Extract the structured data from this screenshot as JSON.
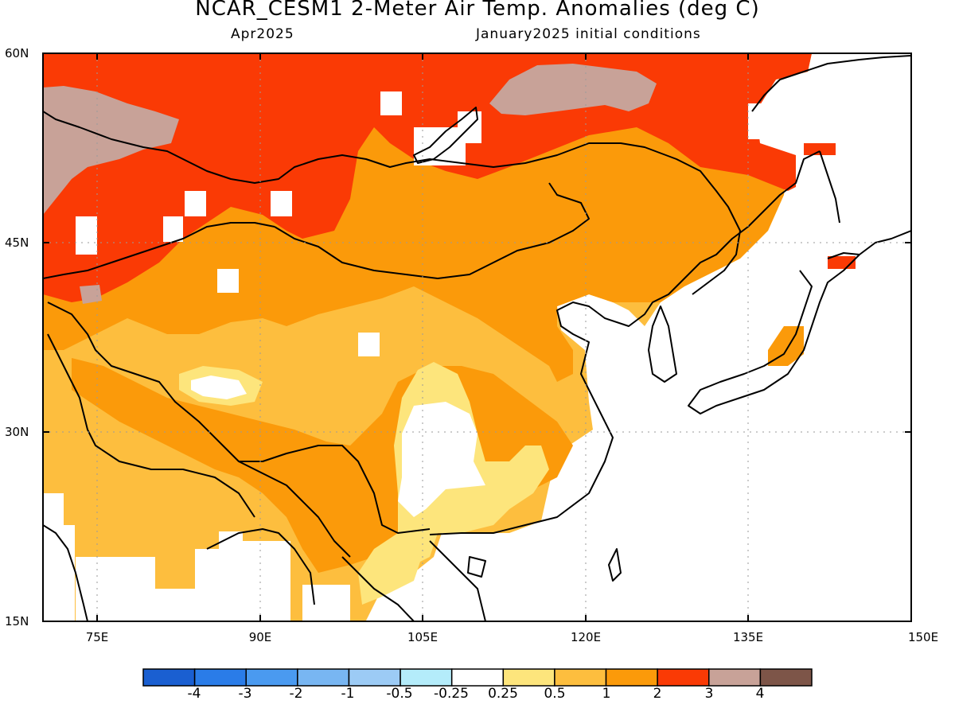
{
  "header": {
    "title": "NCAR_CESM1 2-Meter Air Temp. Anomalies (deg C)",
    "valid_month": "Apr2025",
    "initial_conditions": "January2025 initial conditions"
  },
  "axes": {
    "lat_labels": [
      "60N",
      "45N",
      "30N",
      "15N"
    ],
    "lon_labels": [
      "75E",
      "90E",
      "105E",
      "120E",
      "135E",
      "150E"
    ],
    "lat_range": [
      15,
      60
    ],
    "lon_range": [
      70,
      150
    ],
    "grid": "dotted"
  },
  "colorbar": {
    "labels": [
      "-4",
      "-3",
      "-2",
      "-1",
      "-0.5",
      "-0.25",
      "0.25",
      "0.5",
      "1",
      "2",
      "3",
      "4"
    ],
    "colors": [
      "#1a5fd1",
      "#2a7ce8",
      "#4a9af0",
      "#78b6f2",
      "#9ccbf5",
      "#b4ecfa",
      "#ffffff",
      "#fde57c",
      "#fdbe3e",
      "#fb9a0a",
      "#fa3a05",
      "#c8a298",
      "#7d5548"
    ]
  },
  "legend_colors": {
    "lightyellow": "#fde57c",
    "lightorange": "#fdbe3e",
    "orange": "#fb9a0a",
    "red": "#fa3a05",
    "taupe": "#c8a298"
  }
}
